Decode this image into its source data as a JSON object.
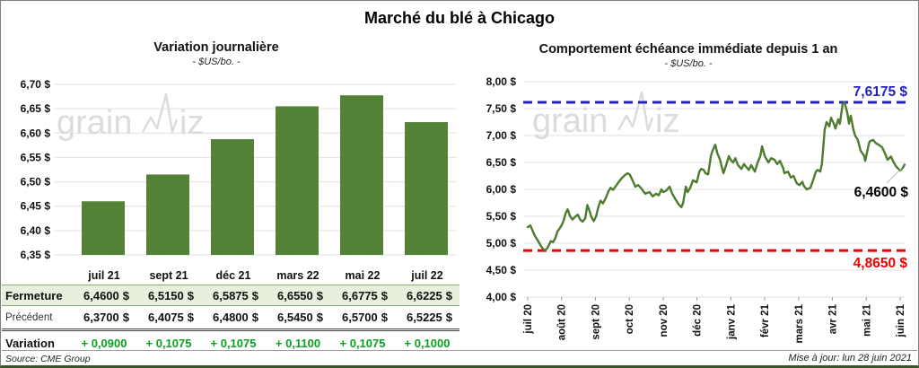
{
  "page": {
    "title": "Marché du blé à Chicago",
    "watermark": {
      "part1": "grain",
      "part2": "iz"
    },
    "footer": {
      "source": "Source: CME Group",
      "updated": "Mise à jour: lun 28 juin 2021"
    }
  },
  "chart_data": [
    {
      "type": "bar",
      "title": "Variation journalière",
      "subtitle": "- $US/bo. -",
      "categories": [
        "juil 21",
        "sept 21",
        "déc 21",
        "mars 22",
        "mai 22",
        "juil 22"
      ],
      "values": [
        6.46,
        6.515,
        6.5875,
        6.655,
        6.6775,
        6.6225
      ],
      "ylim": [
        6.35,
        6.7
      ],
      "ytick_labels": [
        "6,70 $",
        "6,65 $",
        "6,60 $",
        "6,55 $",
        "6,50 $",
        "6,45 $",
        "6,40 $",
        "6,35 $"
      ],
      "bar_color": "#538135",
      "grid_color": "#e0e0e0",
      "legend": "none"
    },
    {
      "type": "line",
      "title": "Comportement échéance immédiate depuis 1 an",
      "subtitle": "- $US/bo. -",
      "x_labels": [
        "juil 20",
        "août 20",
        "sept 20",
        "oct 20",
        "nov 20",
        "déc 20",
        "janv 21",
        "févr 21",
        "mars 21",
        "avr 21",
        "mai 21",
        "juin 21"
      ],
      "ylim": [
        4.0,
        8.0
      ],
      "ytick_labels": [
        "8,00 $",
        "7,50 $",
        "7,00 $",
        "6,50 $",
        "6,00 $",
        "5,50 $",
        "5,00 $",
        "4,50 $",
        "4,00 $"
      ],
      "line_color": "#4e7b2e",
      "grid_color": "#e0e0e0",
      "high": {
        "value": 7.6175,
        "label": "7,6175 $",
        "color": "#2222c4"
      },
      "low": {
        "value": 4.865,
        "label": "4,8650 $",
        "color": "#ee0000"
      },
      "last": {
        "value": 6.46,
        "label": "6,4600 $",
        "color": "#000000"
      },
      "series": [
        [
          0,
          5.3
        ],
        [
          0.08,
          5.33
        ],
        [
          0.2,
          5.15
        ],
        [
          0.3,
          5.05
        ],
        [
          0.42,
          4.92
        ],
        [
          0.5,
          4.87
        ],
        [
          0.56,
          4.89
        ],
        [
          0.63,
          4.97
        ],
        [
          0.68,
          5.04
        ],
        [
          0.75,
          5.02
        ],
        [
          0.82,
          5.1
        ],
        [
          0.88,
          5.22
        ],
        [
          0.95,
          5.28
        ],
        [
          1.0,
          5.33
        ],
        [
          1.06,
          5.42
        ],
        [
          1.12,
          5.56
        ],
        [
          1.18,
          5.63
        ],
        [
          1.25,
          5.5
        ],
        [
          1.32,
          5.44
        ],
        [
          1.4,
          5.49
        ],
        [
          1.48,
          5.53
        ],
        [
          1.55,
          5.44
        ],
        [
          1.62,
          5.4
        ],
        [
          1.7,
          5.46
        ],
        [
          1.76,
          5.71
        ],
        [
          1.82,
          5.61
        ],
        [
          1.88,
          5.49
        ],
        [
          1.95,
          5.41
        ],
        [
          2.02,
          5.5
        ],
        [
          2.08,
          5.66
        ],
        [
          2.15,
          5.79
        ],
        [
          2.22,
          5.74
        ],
        [
          2.3,
          5.83
        ],
        [
          2.38,
          5.96
        ],
        [
          2.45,
          6.03
        ],
        [
          2.52,
          5.99
        ],
        [
          2.6,
          6.06
        ],
        [
          2.68,
          6.13
        ],
        [
          2.78,
          6.21
        ],
        [
          2.88,
          6.27
        ],
        [
          2.95,
          6.3
        ],
        [
          3.02,
          6.27
        ],
        [
          3.1,
          6.16
        ],
        [
          3.18,
          6.05
        ],
        [
          3.26,
          6.08
        ],
        [
          3.34,
          6.03
        ],
        [
          3.47,
          5.92
        ],
        [
          3.6,
          5.95
        ],
        [
          3.69,
          5.87
        ],
        [
          3.79,
          5.92
        ],
        [
          3.87,
          5.89
        ],
        [
          3.95,
          6.0
        ],
        [
          4.0,
          5.95
        ],
        [
          4.08,
          5.97
        ],
        [
          4.19,
          6.05
        ],
        [
          4.27,
          5.92
        ],
        [
          4.35,
          5.83
        ],
        [
          4.46,
          5.72
        ],
        [
          4.54,
          5.67
        ],
        [
          4.59,
          5.75
        ],
        [
          4.67,
          6.05
        ],
        [
          4.72,
          5.95
        ],
        [
          4.8,
          6.03
        ],
        [
          4.88,
          6.17
        ],
        [
          4.99,
          6.13
        ],
        [
          5.07,
          6.33
        ],
        [
          5.12,
          6.38
        ],
        [
          5.2,
          6.36
        ],
        [
          5.25,
          6.3
        ],
        [
          5.33,
          6.28
        ],
        [
          5.41,
          6.62
        ],
        [
          5.46,
          6.72
        ],
        [
          5.54,
          6.83
        ],
        [
          5.6,
          6.67
        ],
        [
          5.68,
          6.55
        ],
        [
          5.73,
          6.42
        ],
        [
          5.78,
          6.3
        ],
        [
          5.86,
          6.45
        ],
        [
          5.94,
          6.62
        ],
        [
          5.99,
          6.55
        ],
        [
          6.07,
          6.5
        ],
        [
          6.13,
          6.58
        ],
        [
          6.21,
          6.45
        ],
        [
          6.31,
          6.38
        ],
        [
          6.39,
          6.47
        ],
        [
          6.45,
          6.42
        ],
        [
          6.53,
          6.36
        ],
        [
          6.6,
          6.45
        ],
        [
          6.71,
          6.33
        ],
        [
          6.79,
          6.5
        ],
        [
          6.87,
          6.62
        ],
        [
          6.92,
          6.8
        ],
        [
          7.0,
          6.62
        ],
        [
          7.11,
          6.5
        ],
        [
          7.19,
          6.58
        ],
        [
          7.29,
          6.55
        ],
        [
          7.37,
          6.47
        ],
        [
          7.45,
          6.53
        ],
        [
          7.55,
          6.39
        ],
        [
          7.58,
          6.3
        ],
        [
          7.69,
          6.33
        ],
        [
          7.77,
          6.22
        ],
        [
          7.85,
          6.25
        ],
        [
          7.95,
          6.11
        ],
        [
          8.03,
          6.08
        ],
        [
          8.11,
          6.14
        ],
        [
          8.16,
          6.06
        ],
        [
          8.24,
          6.0
        ],
        [
          8.35,
          6.03
        ],
        [
          8.43,
          6.17
        ],
        [
          8.51,
          6.33
        ],
        [
          8.56,
          6.36
        ],
        [
          8.64,
          6.33
        ],
        [
          8.69,
          6.47
        ],
        [
          8.77,
          7.11
        ],
        [
          8.83,
          7.25
        ],
        [
          8.91,
          7.17
        ],
        [
          8.96,
          7.33
        ],
        [
          9.04,
          7.22
        ],
        [
          9.09,
          7.13
        ],
        [
          9.17,
          7.3
        ],
        [
          9.22,
          7.22
        ],
        [
          9.3,
          7.58
        ],
        [
          9.36,
          7.6175
        ],
        [
          9.44,
          7.42
        ],
        [
          9.49,
          7.22
        ],
        [
          9.54,
          7.37
        ],
        [
          9.62,
          7.11
        ],
        [
          9.67,
          7.0
        ],
        [
          9.75,
          6.92
        ],
        [
          9.83,
          6.72
        ],
        [
          9.94,
          6.62
        ],
        [
          9.97,
          6.53
        ],
        [
          10.07,
          6.83
        ],
        [
          10.1,
          6.89
        ],
        [
          10.2,
          6.92
        ],
        [
          10.28,
          6.86
        ],
        [
          10.36,
          6.83
        ],
        [
          10.47,
          6.78
        ],
        [
          10.55,
          6.67
        ],
        [
          10.63,
          6.55
        ],
        [
          10.73,
          6.61
        ],
        [
          10.81,
          6.5
        ],
        [
          10.89,
          6.42
        ],
        [
          11.0,
          6.35
        ],
        [
          11.08,
          6.4
        ],
        [
          11.13,
          6.46
        ]
      ]
    },
    {
      "type": "table",
      "columns": [
        "juil 21",
        "sept 21",
        "déc 21",
        "mars 22",
        "mai 22",
        "juil 22"
      ],
      "currency": "$",
      "variation_color": "#0ba01f",
      "rows": [
        {
          "label": "Fermeture",
          "style": "close",
          "unit": "$",
          "values": [
            "6,4600",
            "6,5150",
            "6,5875",
            "6,6550",
            "6,6775",
            "6,6225"
          ]
        },
        {
          "label": "Précédent",
          "style": "prev",
          "unit": "$",
          "values": [
            "6,3700",
            "6,4075",
            "6,4800",
            "6,5450",
            "6,5700",
            "6,5225"
          ]
        },
        {
          "label": "Variation",
          "style": "var",
          "unit": "",
          "values": [
            "+ 0,0900",
            "+ 0,1075",
            "+ 0,1075",
            "+ 0,1100",
            "+ 0,1075",
            "+ 0,1000"
          ]
        }
      ]
    }
  ]
}
